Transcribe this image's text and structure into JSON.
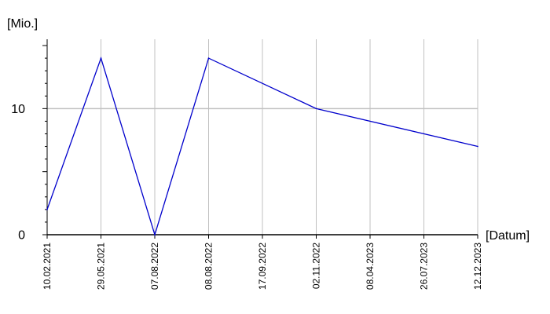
{
  "chart_data": {
    "type": "line",
    "title": "",
    "xlabel": "[Datum]",
    "ylabel": "[Mio.]",
    "x_ticks": [
      "10.02.2021",
      "29.05.2021",
      "07.08.2022",
      "08.08.2022",
      "17.09.2022",
      "02.11.2022",
      "08.04.2023",
      "26.07.2023",
      "12.12.2023"
    ],
    "y_ticks": [
      0,
      10
    ],
    "ylim": [
      0,
      15.5
    ],
    "grid": true,
    "legend": "none",
    "series": [
      {
        "color": "#0000cc",
        "points": [
          {
            "x": "10.02.2021",
            "y": 2
          },
          {
            "x": "29.05.2021",
            "y": 14
          },
          {
            "x": "07.08.2022",
            "y": 0
          },
          {
            "x": "08.08.2022",
            "y": 14
          },
          {
            "x": "02.11.2022",
            "y": 10
          },
          {
            "x": "12.12.2023",
            "y": 7
          }
        ]
      }
    ],
    "colors": {
      "grid": "#c0c0c0",
      "axis": "#000000",
      "series": "#0000cc"
    }
  }
}
